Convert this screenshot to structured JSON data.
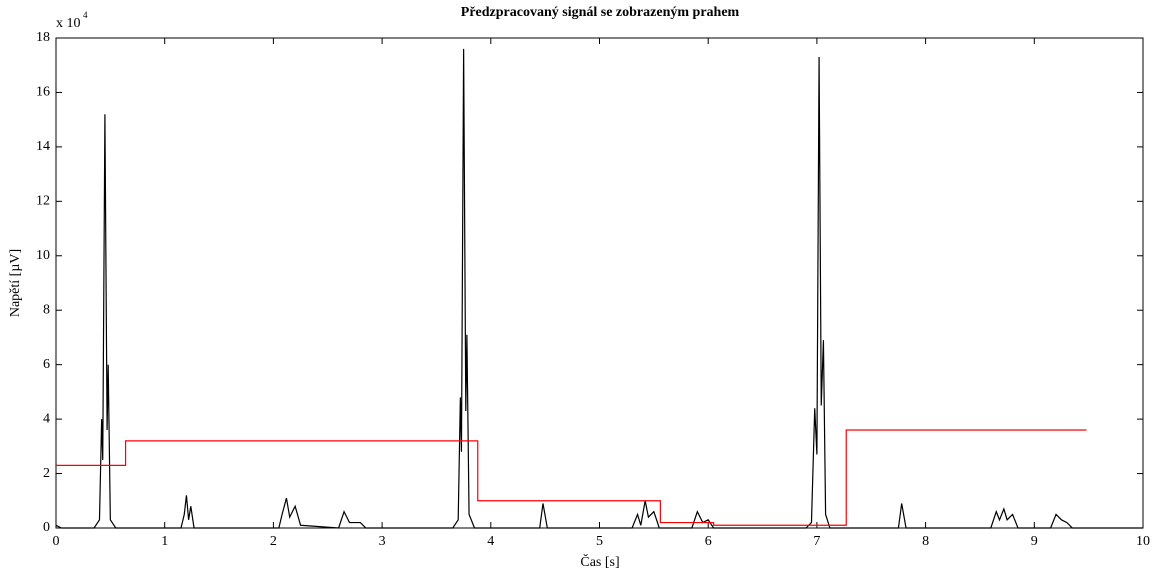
{
  "chart_data": {
    "type": "line",
    "title": "Předzpracovaný signál se zobrazeným prahem",
    "x_label": "Čas [s]",
    "y_label": "Napětí [µV]",
    "y_scale_label": "x 10",
    "y_scale_exponent": "4",
    "xlim": [
      0,
      10
    ],
    "ylim": [
      0,
      18
    ],
    "xticks": [
      0,
      1,
      2,
      3,
      4,
      5,
      6,
      7,
      8,
      9,
      10
    ],
    "yticks": [
      0,
      2,
      4,
      6,
      8,
      10,
      12,
      14,
      16,
      18
    ],
    "grid": false,
    "series": [
      {
        "color": "#000000",
        "x": [
          0,
          0.05,
          0.35,
          0.4,
          0.42,
          0.43,
          0.45,
          0.47,
          0.48,
          0.5,
          0.55,
          1.15,
          1.18,
          1.2,
          1.22,
          1.24,
          1.27,
          2.05,
          2.08,
          2.12,
          2.15,
          2.2,
          2.25,
          2.6,
          2.65,
          2.7,
          2.8,
          2.85,
          3.65,
          3.7,
          3.72,
          3.73,
          3.75,
          3.77,
          3.78,
          3.8,
          3.85,
          4.45,
          4.48,
          4.52,
          5.3,
          5.35,
          5.38,
          5.42,
          5.45,
          5.5,
          5.55,
          5.85,
          5.9,
          5.95,
          6.0,
          6.05,
          6.9,
          6.95,
          6.98,
          7.0,
          7.02,
          7.04,
          7.06,
          7.08,
          7.12,
          7.75,
          7.78,
          7.82,
          8.6,
          8.65,
          8.68,
          8.72,
          8.75,
          8.8,
          8.85,
          9.15,
          9.2,
          9.25,
          9.3,
          9.35,
          10
        ],
        "values": [
          0.1,
          0,
          0,
          0.3,
          4.0,
          2.5,
          15.2,
          3.6,
          6.0,
          0.3,
          0,
          0,
          0.5,
          1.2,
          0.3,
          0.8,
          0,
          0,
          0.5,
          1.1,
          0.4,
          0.8,
          0.1,
          0,
          0.6,
          0.2,
          0.2,
          0,
          0,
          0.3,
          4.8,
          2.8,
          17.6,
          4.3,
          7.1,
          0.5,
          0,
          0,
          0.9,
          0,
          0,
          0.5,
          0.1,
          1.0,
          0.4,
          0.6,
          0,
          0,
          0.6,
          0.2,
          0.3,
          0,
          0,
          0.2,
          4.4,
          2.7,
          17.3,
          4.5,
          6.9,
          0.5,
          0,
          0,
          0.9,
          0,
          0,
          0.6,
          0.3,
          0.7,
          0.3,
          0.5,
          0,
          0,
          0.5,
          0.3,
          0.2,
          0,
          0
        ]
      },
      {
        "color": "#ff0000",
        "x": [
          0,
          0.64,
          0.64,
          3.88,
          3.88,
          5.56,
          5.56,
          6.05,
          6.05,
          7.27,
          7.27,
          9.48
        ],
        "values": [
          2.3,
          2.3,
          3.2,
          3.2,
          1.0,
          1.0,
          0.2,
          0.2,
          0.1,
          0.1,
          3.6,
          3.6
        ]
      }
    ]
  }
}
